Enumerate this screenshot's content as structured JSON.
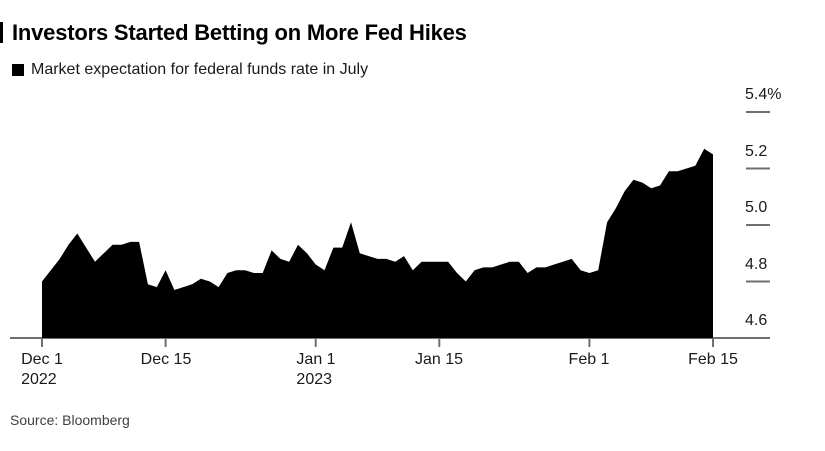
{
  "chart_data": {
    "type": "area",
    "title": "Investors Started Betting on More Fed Hikes",
    "legend": "Market expectation for federal funds rate in July",
    "source": "Source: Bloomberg",
    "unit": "%",
    "ylim": [
      4.6,
      5.4
    ],
    "grid": false,
    "legend_position": "top-left",
    "y_axis_side": "right",
    "y_ticks": [
      {
        "label": "4.6",
        "value": 4.6
      },
      {
        "label": "4.8",
        "value": 4.8
      },
      {
        "label": "5.0",
        "value": 5.0
      },
      {
        "label": "5.2",
        "value": 5.2
      },
      {
        "label": "5.4%",
        "value": 5.4
      }
    ],
    "x_ticks": [
      {
        "label": "Dec 1",
        "year": "2022",
        "day": 0
      },
      {
        "label": "Dec 15",
        "day": 14
      },
      {
        "label": "Jan 1",
        "year": "2023",
        "day": 31
      },
      {
        "label": "Jan 15",
        "day": 45
      },
      {
        "label": "Feb 1",
        "day": 62
      },
      {
        "label": "Feb 15",
        "day": 76
      }
    ],
    "values": [
      4.8,
      4.84,
      4.88,
      4.93,
      4.97,
      4.92,
      4.87,
      4.9,
      4.93,
      4.93,
      4.94,
      4.94,
      4.79,
      4.78,
      4.84,
      4.77,
      4.78,
      4.79,
      4.81,
      4.8,
      4.78,
      4.83,
      4.84,
      4.84,
      4.83,
      4.83,
      4.91,
      4.88,
      4.87,
      4.93,
      4.9,
      4.86,
      4.84,
      4.92,
      4.92,
      5.01,
      4.9,
      4.89,
      4.88,
      4.88,
      4.87,
      4.89,
      4.84,
      4.87,
      4.87,
      4.87,
      4.87,
      4.83,
      4.8,
      4.84,
      4.85,
      4.85,
      4.86,
      4.87,
      4.87,
      4.83,
      4.85,
      4.85,
      4.86,
      4.87,
      4.88,
      4.84,
      4.83,
      4.84,
      5.01,
      5.06,
      5.12,
      5.16,
      5.15,
      5.13,
      5.14,
      5.19,
      5.19,
      5.2,
      5.21,
      5.27,
      5.25
    ],
    "fill_color": "#000000",
    "axis_color": "#6f6f6f",
    "label_color": "#1a1a1a",
    "background": "#ffffff"
  }
}
